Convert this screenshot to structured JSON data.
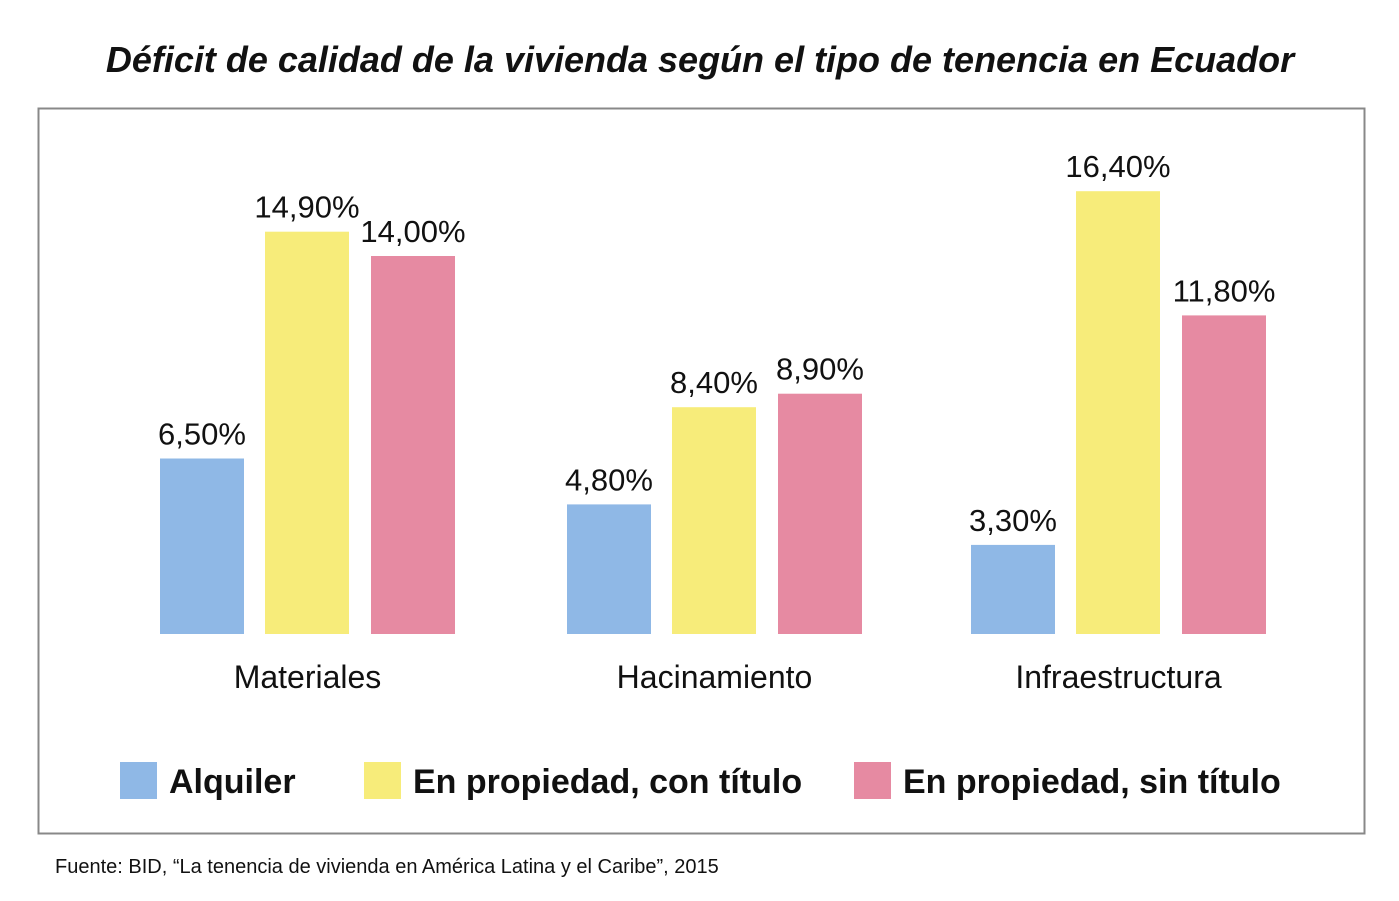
{
  "chart_data": {
    "type": "bar",
    "title": "Déficit de calidad de la vivienda según el tipo de tenencia en Ecuador",
    "categories": [
      "Materiales",
      "Hacinamiento",
      "Infraestructura"
    ],
    "series": [
      {
        "name": "Alquiler",
        "color": "#8fb8e6",
        "values": [
          6.5,
          4.8,
          3.3
        ],
        "labels": [
          "6,50%",
          "4,80%",
          "3,30%"
        ]
      },
      {
        "name": "En propiedad, con título",
        "color": "#f7ec7a",
        "values": [
          14.9,
          8.4,
          16.4
        ],
        "labels": [
          "14,90%",
          "8,40%",
          "16,40%"
        ]
      },
      {
        "name": "En propiedad, sin título",
        "color": "#e68aa2",
        "values": [
          14.0,
          8.9,
          11.8
        ],
        "labels": [
          "14,00%",
          "8,90%",
          "11,80%"
        ]
      }
    ],
    "xlabel": "",
    "ylabel": "",
    "ylim": [
      0,
      17
    ],
    "grid": false,
    "legend_position": "bottom",
    "source": "Fuente: BID, “La tenencia de vivienda en  América Latina y el Caribe”, 2015"
  }
}
